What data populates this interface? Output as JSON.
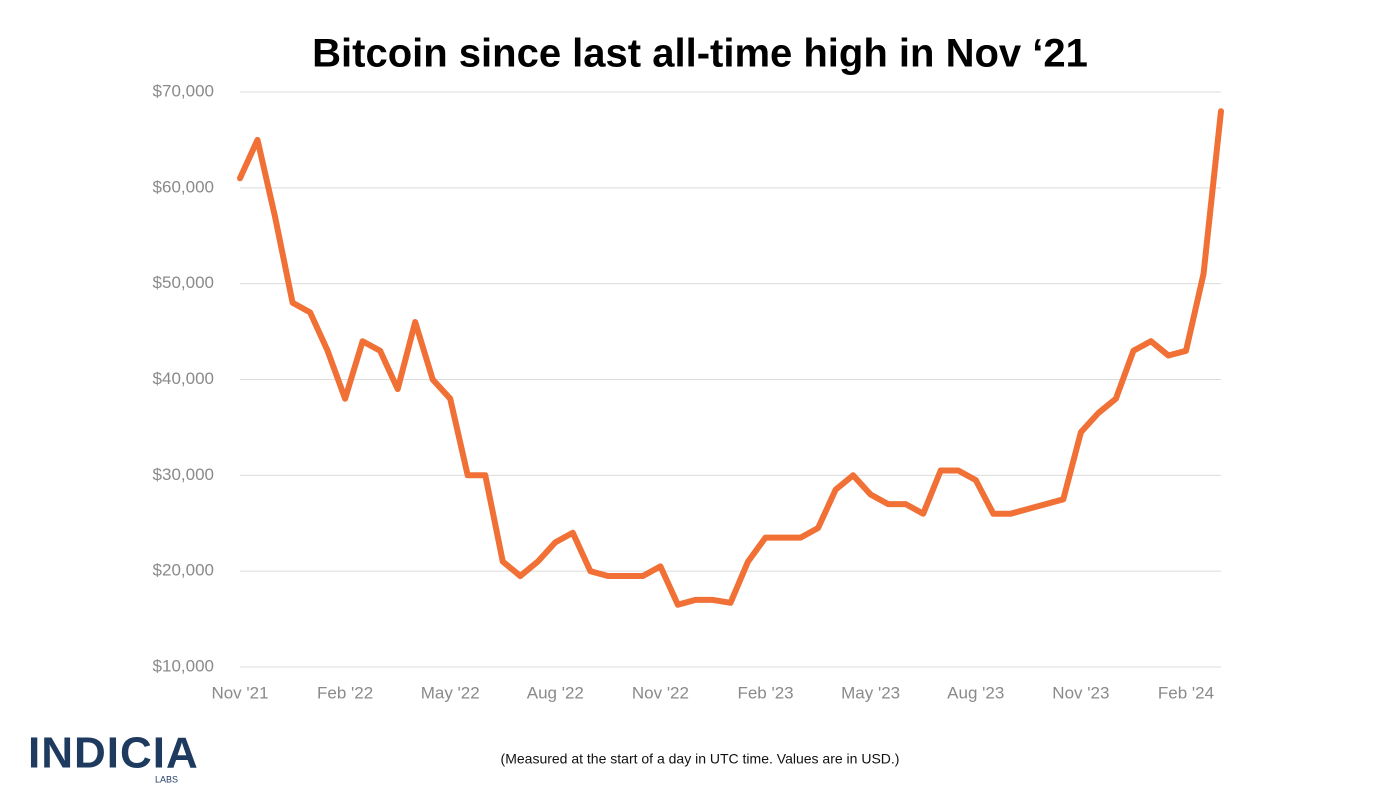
{
  "chart_data": {
    "type": "line",
    "title": "Bitcoin since last all-time high in Nov ‘21",
    "note": "(Measured at the start of a day in UTC time. Values are in USD.)",
    "logo": {
      "name": "INDICIA",
      "sub": "LABS"
    },
    "categories": [
      "Nov '21",
      null,
      null,
      null,
      null,
      null,
      "Feb '22",
      null,
      null,
      null,
      null,
      null,
      "May '22",
      null,
      null,
      null,
      null,
      null,
      "Aug '22",
      null,
      null,
      null,
      null,
      null,
      "Nov '22",
      null,
      null,
      null,
      null,
      null,
      "Feb '23",
      null,
      null,
      null,
      null,
      null,
      "May '23",
      null,
      null,
      null,
      null,
      null,
      "Aug '23",
      null,
      null,
      null,
      null,
      null,
      "Nov '23",
      null,
      null,
      null,
      null,
      null,
      "Feb '24",
      null,
      null
    ],
    "series": [
      {
        "name": "Bitcoin",
        "color": "#f07036",
        "values": [
          61000,
          65000,
          57000,
          48000,
          47000,
          43000,
          38000,
          44000,
          43000,
          39000,
          46000,
          40000,
          38000,
          30000,
          30000,
          21000,
          19500,
          21000,
          23000,
          24000,
          20000,
          19500,
          19500,
          19500,
          20500,
          16500,
          17000,
          17000,
          16700,
          21000,
          23500,
          23500,
          23500,
          24500,
          28500,
          30000,
          28000,
          27000,
          27000,
          26000,
          30500,
          30500,
          29500,
          26000,
          26000,
          26500,
          27000,
          27500,
          34500,
          36500,
          38000,
          43000,
          44000,
          42500,
          43000,
          51000,
          68000
        ]
      }
    ],
    "ylim": [
      10000,
      70000
    ],
    "yticks": [
      {
        "value": 10000,
        "label": "$10,000"
      },
      {
        "value": 20000,
        "label": "$20,000"
      },
      {
        "value": 30000,
        "label": "$30,000"
      },
      {
        "value": 40000,
        "label": "$40,000"
      },
      {
        "value": 50000,
        "label": "$50,000"
      },
      {
        "value": 60000,
        "label": "$60,000"
      },
      {
        "value": 70000,
        "label": "$70,000"
      }
    ],
    "grid": true
  }
}
